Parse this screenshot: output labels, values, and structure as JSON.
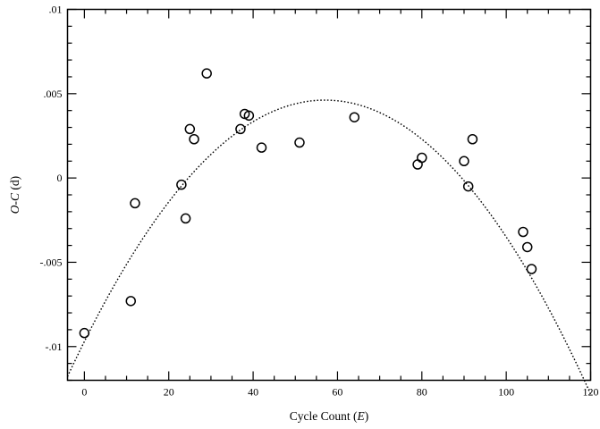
{
  "chart_data": {
    "type": "scatter",
    "title": "",
    "xlabel": {
      "prefix": "Cycle Count (",
      "italic": "E",
      "suffix": ")"
    },
    "ylabel": {
      "italic": "O-C",
      "suffix": " (d)"
    },
    "xlim": [
      -4,
      120
    ],
    "ylim": [
      -0.012,
      0.01
    ],
    "grid": false,
    "x_ticks": [
      {
        "value": 0,
        "label": "0"
      },
      {
        "value": 20,
        "label": "20"
      },
      {
        "value": 40,
        "label": "40"
      },
      {
        "value": 60,
        "label": "60"
      },
      {
        "value": 80,
        "label": "80"
      },
      {
        "value": 100,
        "label": "100"
      },
      {
        "value": 120,
        "label": "120"
      }
    ],
    "y_ticks": [
      {
        "value": -0.01,
        "label": "-.01"
      },
      {
        "value": -0.005,
        "label": "-.005"
      },
      {
        "value": 0,
        "label": "0"
      },
      {
        "value": 0.005,
        "label": ".005"
      },
      {
        "value": 0.01,
        "label": ".01"
      }
    ],
    "series": [
      {
        "style": "open-circle",
        "points": [
          [
            0,
            -0.0092
          ],
          [
            11,
            -0.0073
          ],
          [
            12,
            -0.0015
          ],
          [
            23,
            -0.0004
          ],
          [
            24,
            -0.0024
          ],
          [
            25,
            0.0029
          ],
          [
            26,
            0.0023
          ],
          [
            29,
            0.0062
          ],
          [
            37,
            0.0029
          ],
          [
            38,
            0.0038
          ],
          [
            39,
            0.0037
          ],
          [
            42,
            0.0018
          ],
          [
            51,
            0.0021
          ],
          [
            64,
            0.0036
          ],
          [
            79,
            0.0008
          ],
          [
            80,
            0.0012
          ],
          [
            90,
            0.001
          ],
          [
            91,
            -0.0005
          ],
          [
            92,
            0.0023
          ],
          [
            104,
            -0.0032
          ],
          [
            105,
            -0.0041
          ],
          [
            106,
            -0.0054
          ]
        ]
      },
      {
        "style": "dotted-fit",
        "fit": "quadratic",
        "coefficients": [
          -0.0097,
          0.000502,
          -4.4e-06
        ]
      }
    ]
  }
}
